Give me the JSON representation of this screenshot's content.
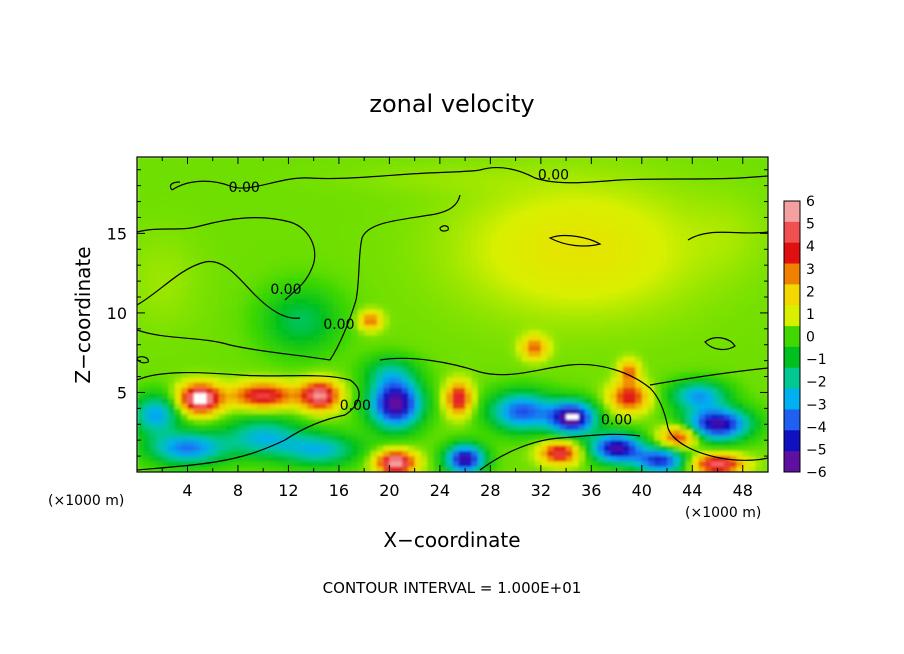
{
  "chart_data": {
    "type": "heatmap",
    "title": "zonal velocity",
    "xlabel": "X−coordinate",
    "ylabel": "Z−coordinate",
    "x_unit_left": "(×1000 m)",
    "x_unit_right": "(×1000 m)",
    "footer": "CONTOUR INTERVAL = 1.000E+01",
    "xlim": [
      0,
      50
    ],
    "ylim": [
      0,
      19.8
    ],
    "x_ticks": [
      4,
      8,
      12,
      16,
      20,
      24,
      28,
      32,
      36,
      40,
      44,
      48
    ],
    "x_tick_labels": [
      "4",
      "8",
      "12",
      "16",
      "20",
      "24",
      "28",
      "32",
      "36",
      "40",
      "44",
      "48"
    ],
    "y_ticks": [
      5,
      10,
      15
    ],
    "y_tick_labels": [
      "5",
      "10",
      "15"
    ],
    "contour_labels": [
      {
        "text": "0.00",
        "x": 8.5,
        "z": 17.6
      },
      {
        "text": "0.00",
        "x": 33.0,
        "z": 18.4
      },
      {
        "text": "0.00",
        "x": 11.8,
        "z": 11.2
      },
      {
        "text": "0.00",
        "x": 16.0,
        "z": 9.0
      },
      {
        "text": "0.00",
        "x": 17.3,
        "z": 3.9
      },
      {
        "text": "0.00",
        "x": 38.0,
        "z": 3.0
      }
    ],
    "colorbar": {
      "labels": [
        "6",
        "5",
        "4",
        "3",
        "2",
        "1",
        "0",
        "−1",
        "−2",
        "−3",
        "−4",
        "−5",
        "−6"
      ],
      "colors": [
        "#f4a0a0",
        "#f05050",
        "#e01010",
        "#f08000",
        "#f2d800",
        "#d8f000",
        "#40d800",
        "#00c020",
        "#00c890",
        "#00b0f0",
        "#2060f0",
        "#1010c0",
        "#6010a0"
      ]
    },
    "background_value": 0.3,
    "blobs": [
      {
        "x": 5,
        "z": 4.6,
        "v": 6.5,
        "rx": 1.6,
        "rz": 0.9
      },
      {
        "x": 10,
        "z": 4.8,
        "v": 4.5,
        "rx": 2.5,
        "rz": 0.8
      },
      {
        "x": 14.5,
        "z": 4.8,
        "v": 5.5,
        "rx": 1.5,
        "rz": 0.9
      },
      {
        "x": 20.5,
        "z": 4.3,
        "v": -6.5,
        "rx": 2.0,
        "rz": 1.5
      },
      {
        "x": 25.5,
        "z": 4.6,
        "v": 4.5,
        "rx": 1.0,
        "rz": 1.0
      },
      {
        "x": 30.5,
        "z": 3.8,
        "v": -4.5,
        "rx": 2.5,
        "rz": 1.2
      },
      {
        "x": 34.5,
        "z": 3.4,
        "v": -6.5,
        "rx": 1.8,
        "rz": 1.0
      },
      {
        "x": 39,
        "z": 4.7,
        "v": 4.0,
        "rx": 1.5,
        "rz": 0.9
      },
      {
        "x": 46,
        "z": 3.0,
        "v": -6.0,
        "rx": 2.5,
        "rz": 1.0
      },
      {
        "x": 44.5,
        "z": 4.8,
        "v": -3.5,
        "rx": 2.2,
        "rz": 0.9
      },
      {
        "x": 1.5,
        "z": 3.6,
        "v": -3.5,
        "rx": 1.8,
        "rz": 1.2
      },
      {
        "x": 4,
        "z": 1.5,
        "v": -4.0,
        "rx": 3.0,
        "rz": 1.0
      },
      {
        "x": 10,
        "z": 2.2,
        "v": -3.0,
        "rx": 3.0,
        "rz": 1.2
      },
      {
        "x": 20.5,
        "z": 0.6,
        "v": 6.0,
        "rx": 1.5,
        "rz": 0.7
      },
      {
        "x": 26,
        "z": 0.8,
        "v": -6.0,
        "rx": 1.5,
        "rz": 0.9
      },
      {
        "x": 38,
        "z": 1.5,
        "v": -6.0,
        "rx": 2.0,
        "rz": 0.9
      },
      {
        "x": 41.5,
        "z": 0.7,
        "v": -5.0,
        "rx": 2.0,
        "rz": 0.8
      },
      {
        "x": 46,
        "z": 0.5,
        "v": 5.0,
        "rx": 2.0,
        "rz": 0.6
      },
      {
        "x": 43,
        "z": 2.2,
        "v": 4.0,
        "rx": 1.5,
        "rz": 0.7
      },
      {
        "x": 33.5,
        "z": 1.2,
        "v": 4.5,
        "rx": 1.5,
        "rz": 0.7
      },
      {
        "x": 14.5,
        "z": 1.4,
        "v": -3.0,
        "rx": 3.0,
        "rz": 1.0
      },
      {
        "x": 18.5,
        "z": 9.5,
        "v": 3.0,
        "rx": 0.9,
        "rz": 0.6
      },
      {
        "x": 31.5,
        "z": 7.8,
        "v": 3.0,
        "rx": 1.0,
        "rz": 0.7
      },
      {
        "x": 39,
        "z": 6.3,
        "v": 3.0,
        "rx": 0.8,
        "rz": 0.7
      },
      {
        "x": 13,
        "z": 9.5,
        "v": -1.8,
        "rx": 3.0,
        "rz": 2.0
      },
      {
        "x": 20,
        "z": 6.3,
        "v": -1.8,
        "rx": 2.0,
        "rz": 1.0
      },
      {
        "x": 35,
        "z": 14,
        "v": 1.2,
        "rx": 9.0,
        "rz": 4.0
      },
      {
        "x": 24,
        "z": 18.5,
        "v": 0.2,
        "rx": 8.0,
        "rz": 1.0
      },
      {
        "x": 47,
        "z": 15,
        "v": 0.2,
        "rx": 3.0,
        "rz": 2.5
      },
      {
        "x": 2,
        "z": 12,
        "v": 0.3,
        "rx": 3.0,
        "rz": 3.0
      }
    ]
  }
}
